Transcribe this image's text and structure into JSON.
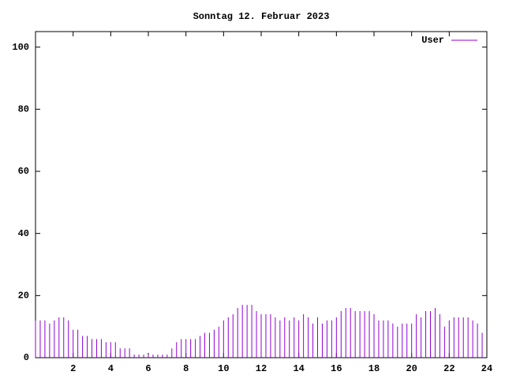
{
  "chart_data": {
    "type": "impulses",
    "title": "Sonntag 12. Februar 2023",
    "x": [
      0,
      0.25,
      0.5,
      0.75,
      1,
      1.25,
      1.5,
      1.75,
      2,
      2.25,
      2.5,
      2.75,
      3,
      3.25,
      3.5,
      3.75,
      4,
      4.25,
      4.5,
      4.75,
      5,
      5.25,
      5.5,
      5.75,
      6,
      6.25,
      6.5,
      6.75,
      7,
      7.25,
      7.5,
      7.75,
      8,
      8.25,
      8.5,
      8.75,
      9,
      9.25,
      9.5,
      9.75,
      10,
      10.25,
      10.5,
      10.75,
      11,
      11.25,
      11.5,
      11.75,
      12,
      12.25,
      12.5,
      12.75,
      13,
      13.25,
      13.5,
      13.75,
      14,
      14.25,
      14.5,
      14.75,
      15,
      15.25,
      15.5,
      15.75,
      16,
      16.25,
      16.5,
      16.75,
      17,
      17.25,
      17.5,
      17.75,
      18,
      18.25,
      18.5,
      18.75,
      19,
      19.25,
      19.5,
      19.75,
      20,
      20.25,
      20.5,
      20.75,
      21,
      21.25,
      21.5,
      21.75,
      22,
      22.25,
      22.5,
      22.75,
      23,
      23.25,
      23.5,
      23.75
    ],
    "series": [
      {
        "name": "User",
        "color": "#9400d3",
        "values": [
          12,
          12,
          12,
          11,
          12,
          13,
          13,
          12,
          9,
          9,
          7,
          7,
          6,
          6,
          6,
          5,
          5,
          5,
          3,
          3,
          3,
          1,
          1,
          1,
          1,
          1,
          1,
          1,
          1,
          3,
          5,
          6,
          6,
          6,
          6,
          7,
          8,
          8,
          9,
          10,
          12,
          13,
          14,
          16,
          17,
          17,
          17,
          15,
          14,
          14,
          14,
          13,
          12,
          13,
          12,
          13,
          12,
          14,
          13,
          11,
          13,
          11,
          12,
          12,
          13,
          15,
          16,
          16,
          15,
          15,
          15,
          15,
          14,
          12,
          12,
          12,
          11,
          10,
          11,
          11,
          11,
          14,
          13,
          15,
          15,
          16,
          14,
          10,
          12,
          13,
          13,
          13,
          13,
          12,
          11,
          8
        ]
      }
    ],
    "xlim": [
      0,
      24
    ],
    "xticks": [
      2,
      4,
      6,
      8,
      10,
      12,
      14,
      16,
      18,
      20,
      22,
      24
    ],
    "ylim": [
      0,
      105
    ],
    "yticks": [
      0,
      20,
      40,
      60,
      80,
      100
    ],
    "legend": "top-right"
  }
}
